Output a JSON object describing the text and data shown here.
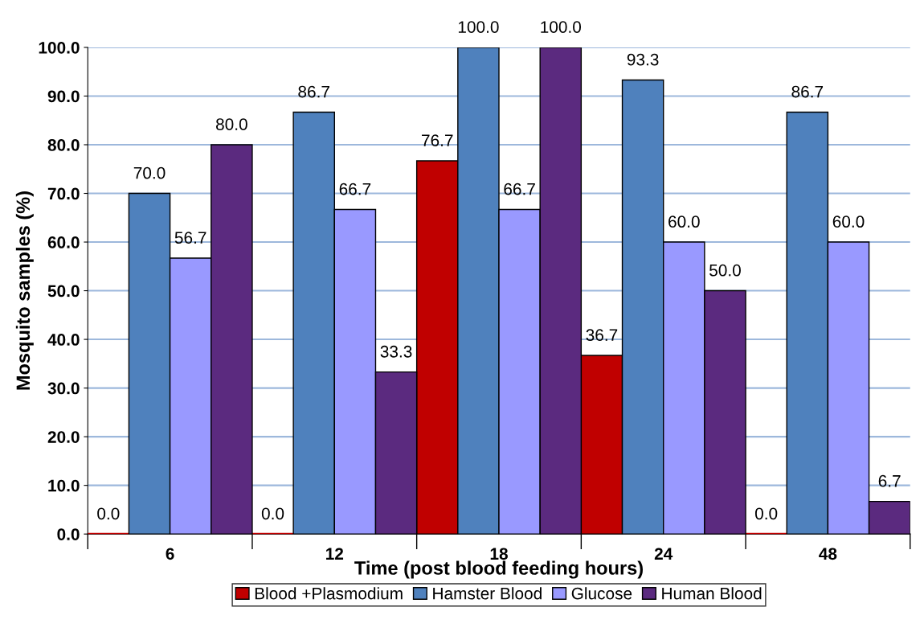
{
  "chart_data": {
    "type": "bar",
    "xlabel": "Time (post blood feeding hours)",
    "ylabel": "Mosquito samples (%)",
    "categories": [
      "6",
      "12",
      "18",
      "24",
      "48"
    ],
    "series": [
      {
        "name": "Blood +Plasmodium",
        "color": "#c00000",
        "values": [
          0,
          0,
          76.7,
          36.7,
          0
        ],
        "value_labels": [
          "0.0",
          "0.0",
          "76.7",
          "36.7",
          "0.0"
        ]
      },
      {
        "name": "Hamster Blood",
        "color": "#4f81bd",
        "values": [
          70,
          86.7,
          100,
          93.3,
          86.7
        ],
        "value_labels": [
          "70.0",
          "86.7",
          "100.0",
          "93.3",
          "86.7"
        ]
      },
      {
        "name": "Glucose",
        "color": "#9999ff",
        "values": [
          56.7,
          66.7,
          66.7,
          60,
          60
        ],
        "value_labels": [
          "56.7",
          "66.7",
          "66.7",
          "60.0",
          "60.0"
        ]
      },
      {
        "name": "Human Blood",
        "color": "#5b2a7f",
        "values": [
          80,
          33.3,
          100,
          50,
          6.7
        ],
        "value_labels": [
          "80.0",
          "33.3",
          "100.0",
          "50.0",
          "6.7"
        ]
      }
    ],
    "ylim": [
      0,
      100
    ],
    "yticks": [
      {
        "value": 0,
        "label": "0.0"
      },
      {
        "value": 10,
        "label": "10.0"
      },
      {
        "value": 20,
        "label": "20.0"
      },
      {
        "value": 30,
        "label": "30.0"
      },
      {
        "value": 40,
        "label": "40.0"
      },
      {
        "value": 50,
        "label": "50.0"
      },
      {
        "value": 60,
        "label": "60.0"
      },
      {
        "value": 70,
        "label": "70.0"
      },
      {
        "value": 80,
        "label": "80.0"
      },
      {
        "value": 90,
        "label": "90.0"
      },
      {
        "value": 100,
        "label": "100.0"
      }
    ],
    "grid": "y",
    "legend": "bottom"
  }
}
